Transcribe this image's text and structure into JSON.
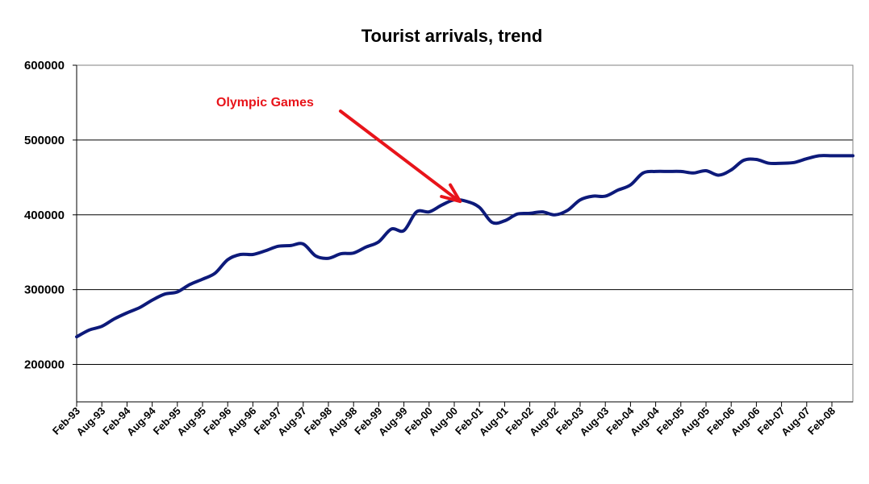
{
  "chart_data": {
    "type": "line",
    "title": "Tourist arrivals, trend",
    "xlabel": "",
    "ylabel": "",
    "ylim": [
      150000,
      600000
    ],
    "yticks": [
      200000,
      300000,
      400000,
      500000,
      600000
    ],
    "ytick_labels": [
      "200000",
      "300000",
      "400000",
      "500000",
      "600000"
    ],
    "grid": true,
    "legend": "none",
    "line_color": "#0d1a7a",
    "annotation": {
      "text": "Olympic Games",
      "color": "#e8141a",
      "points_to": "Sep-00"
    },
    "xtick_labels": [
      "Feb-93",
      "Aug-93",
      "Feb-94",
      "Aug-94",
      "Feb-95",
      "Aug-95",
      "Feb-96",
      "Aug-96",
      "Feb-97",
      "Aug-97",
      "Feb-98",
      "Aug-98",
      "Feb-99",
      "Aug-99",
      "Feb-00",
      "Aug-00",
      "Feb-01",
      "Aug-01",
      "Feb-02",
      "Aug-02",
      "Feb-03",
      "Aug-03",
      "Feb-04",
      "Aug-04",
      "Feb-05",
      "Aug-05",
      "Feb-06",
      "Aug-06",
      "Feb-07",
      "Aug-07",
      "Feb-08"
    ],
    "series": [
      {
        "x": [
          "Feb-93",
          "May-93",
          "Aug-93",
          "Nov-93",
          "Feb-94",
          "May-94",
          "Aug-94",
          "Nov-94",
          "Feb-95",
          "May-95",
          "Aug-95",
          "Nov-95",
          "Feb-96",
          "May-96",
          "Aug-96",
          "Nov-96",
          "Feb-97",
          "May-97",
          "Aug-97",
          "Nov-97",
          "Feb-98",
          "May-98",
          "Aug-98",
          "Nov-98",
          "Feb-99",
          "May-99",
          "Aug-99",
          "Nov-99",
          "Feb-00",
          "May-00",
          "Aug-00",
          "Nov-00",
          "Feb-01",
          "May-01",
          "Aug-01",
          "Nov-01",
          "Feb-02",
          "May-02",
          "Aug-02",
          "Nov-02",
          "Feb-03",
          "May-03",
          "Aug-03",
          "Nov-03",
          "Feb-04",
          "May-04",
          "Aug-04",
          "Nov-04",
          "Feb-05",
          "May-05",
          "Aug-05",
          "Nov-05",
          "Feb-06",
          "May-06",
          "Aug-06",
          "Nov-06",
          "Feb-07",
          "May-07",
          "Aug-07",
          "Nov-07",
          "Feb-08",
          "May-08",
          "Jul-08"
        ],
        "values": [
          237000,
          246000,
          251000,
          261000,
          269000,
          276000,
          286000,
          294000,
          297000,
          307000,
          314000,
          322000,
          340000,
          347000,
          347000,
          352000,
          358000,
          359000,
          361000,
          345000,
          342000,
          348000,
          349000,
          357000,
          364000,
          381000,
          379000,
          404000,
          404000,
          413000,
          420000,
          418000,
          410000,
          390000,
          392000,
          401000,
          402000,
          404000,
          400000,
          406000,
          420000,
          425000,
          425000,
          433000,
          440000,
          456000,
          458000,
          458000,
          458000,
          456000,
          459000,
          453000,
          460000,
          473000,
          474000,
          469000,
          469000,
          470000,
          475000,
          479000,
          479000,
          479000,
          479000
        ]
      }
    ]
  }
}
